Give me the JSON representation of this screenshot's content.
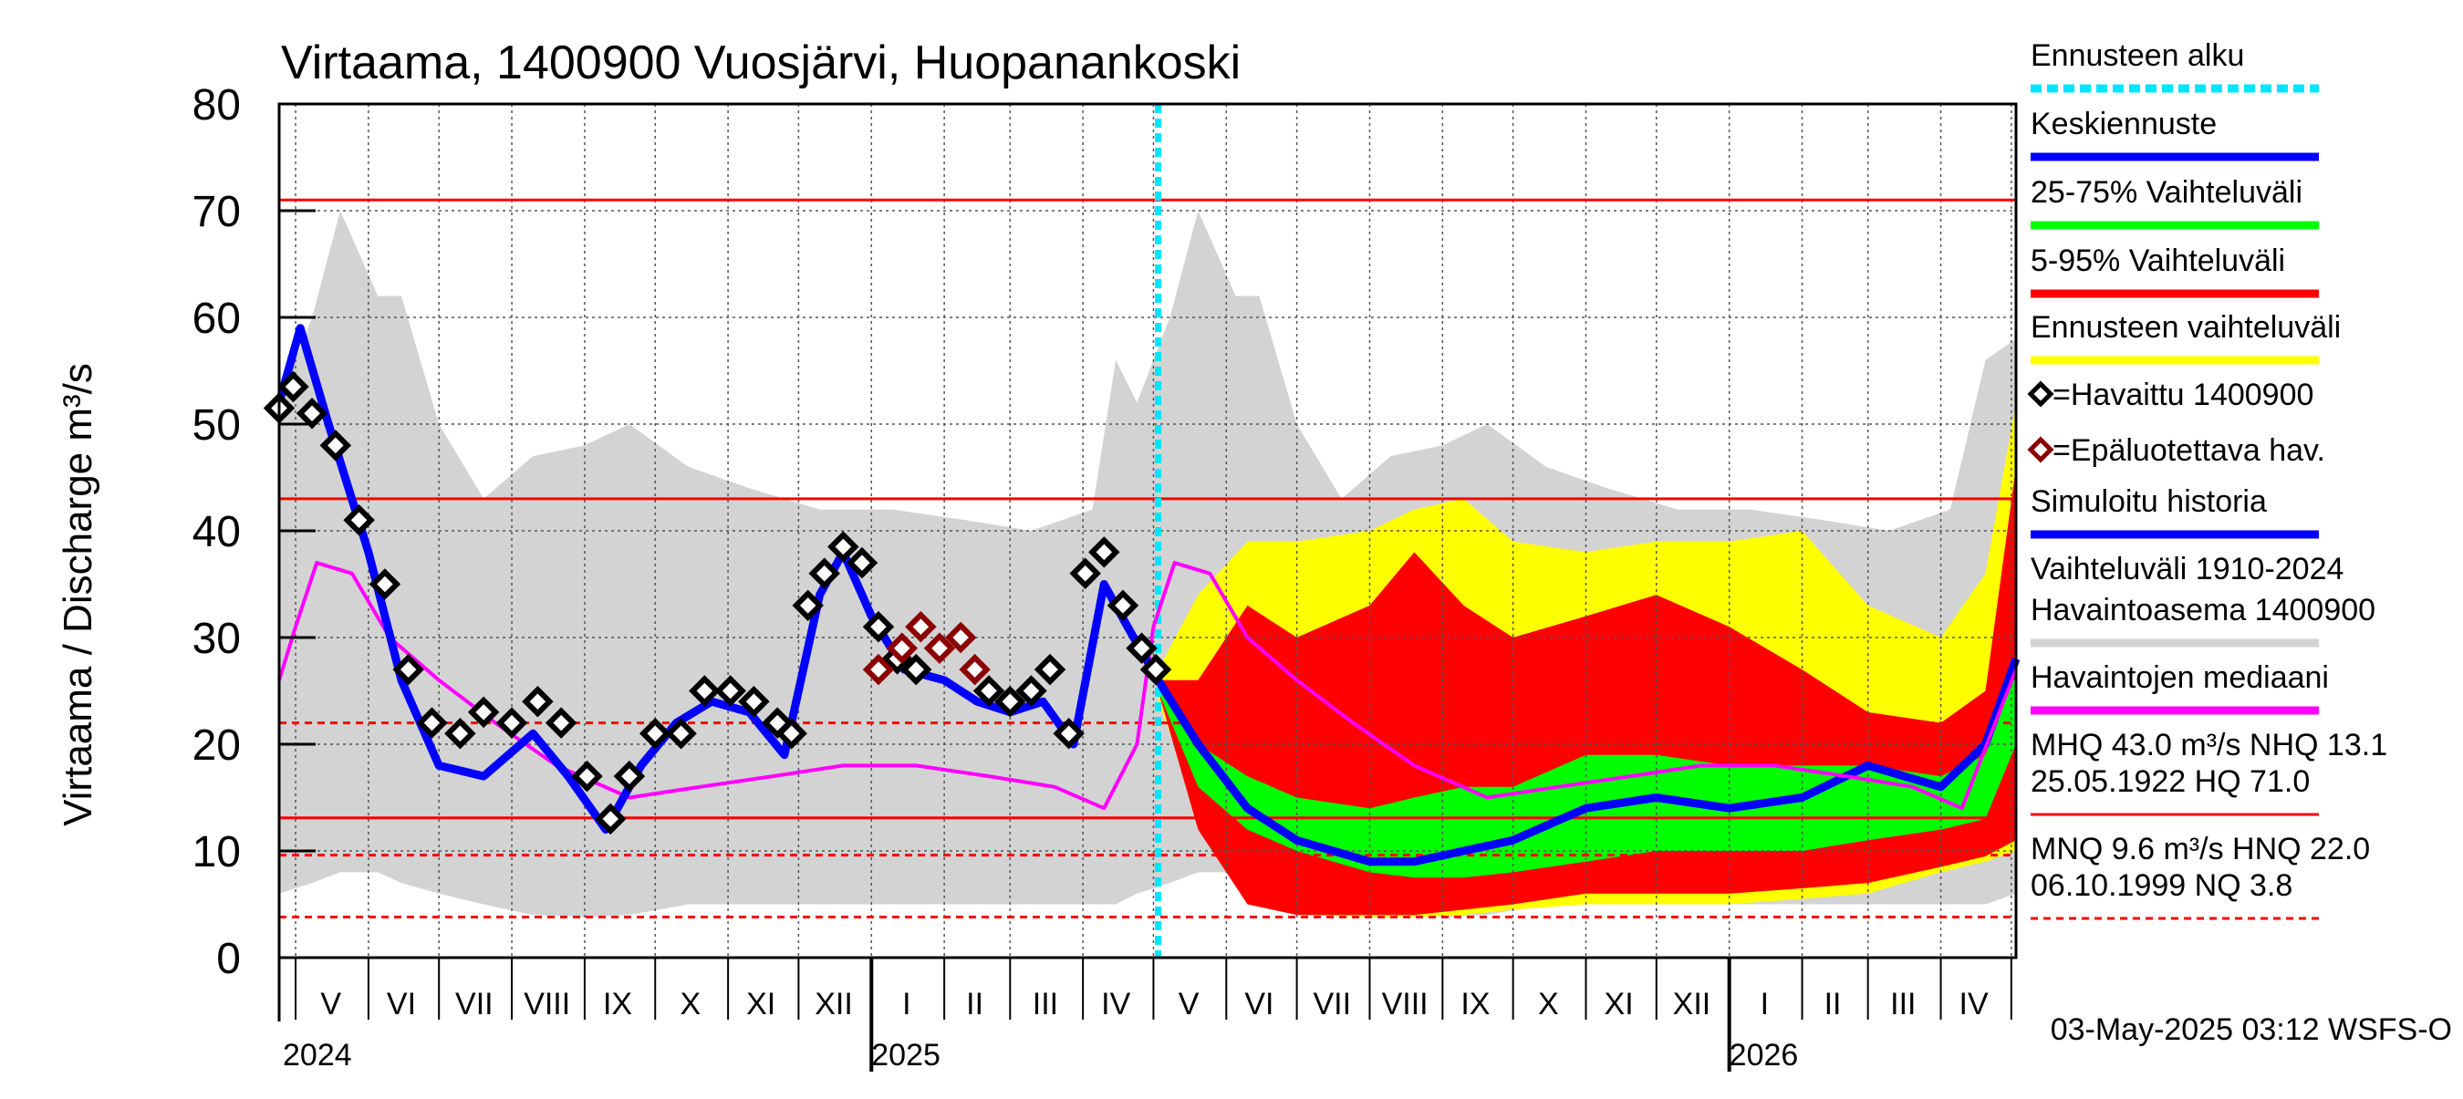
{
  "chart_data": {
    "type": "area",
    "title": "Virtaama, 1400900 Vuosjärvi, Huopanankoski",
    "ylabel": "Virtaama / Discharge   m³/s",
    "ylim": [
      0,
      80
    ],
    "y_ticks": [
      0,
      10,
      20,
      30,
      40,
      50,
      60,
      70,
      80
    ],
    "x_range": [
      "2024-04-24",
      "2026-05-03"
    ],
    "forecast_start": "2025-05-03",
    "grid": true,
    "legend_position": "right",
    "month_labels": [
      {
        "label": "V",
        "date": "2024-05-16"
      },
      {
        "label": "VI",
        "date": "2024-06-15"
      },
      {
        "label": "VII",
        "date": "2024-07-16"
      },
      {
        "label": "VIII",
        "date": "2024-08-16"
      },
      {
        "label": "IX",
        "date": "2024-09-15"
      },
      {
        "label": "X",
        "date": "2024-10-16"
      },
      {
        "label": "XI",
        "date": "2024-11-15"
      },
      {
        "label": "XII",
        "date": "2024-12-16"
      },
      {
        "label": "I",
        "date": "2025-01-16"
      },
      {
        "label": "II",
        "date": "2025-02-14"
      },
      {
        "label": "III",
        "date": "2025-03-16"
      },
      {
        "label": "IV",
        "date": "2025-04-15"
      },
      {
        "label": "V",
        "date": "2025-05-16"
      },
      {
        "label": "VI",
        "date": "2025-06-15"
      },
      {
        "label": "VII",
        "date": "2025-07-16"
      },
      {
        "label": "VIII",
        "date": "2025-08-16"
      },
      {
        "label": "IX",
        "date": "2025-09-15"
      },
      {
        "label": "X",
        "date": "2025-10-16"
      },
      {
        "label": "XI",
        "date": "2025-11-15"
      },
      {
        "label": "XII",
        "date": "2025-12-16"
      },
      {
        "label": "I",
        "date": "2026-01-16"
      },
      {
        "label": "II",
        "date": "2026-02-14"
      },
      {
        "label": "III",
        "date": "2026-03-16"
      },
      {
        "label": "IV",
        "date": "2026-04-15"
      }
    ],
    "month_boundaries": [
      "2024-05-01",
      "2024-06-01",
      "2024-07-01",
      "2024-08-01",
      "2024-09-01",
      "2024-10-01",
      "2024-11-01",
      "2024-12-01",
      "2025-01-01",
      "2025-02-01",
      "2025-03-01",
      "2025-04-01",
      "2025-05-01",
      "2025-06-01",
      "2025-07-01",
      "2025-08-01",
      "2025-09-01",
      "2025-10-01",
      "2025-11-01",
      "2025-12-01",
      "2026-01-01",
      "2026-02-01",
      "2026-03-01",
      "2026-04-01",
      "2026-05-01"
    ],
    "year_labels": [
      {
        "label": "2024",
        "date": "2024-05-01"
      },
      {
        "label": "2025",
        "date": "2025-01-01"
      },
      {
        "label": "2026",
        "date": "2026-01-01"
      }
    ],
    "reference_lines": [
      {
        "value": 71.0,
        "style": "solid",
        "color": "#ff0000"
      },
      {
        "value": 43.0,
        "style": "solid",
        "color": "#ff0000"
      },
      {
        "value": 22.0,
        "style": "dashed",
        "color": "#ff0000"
      },
      {
        "value": 13.1,
        "style": "solid",
        "color": "#ff0000"
      },
      {
        "value": 9.6,
        "style": "dashed",
        "color": "#ff0000"
      },
      {
        "value": 3.8,
        "style": "dashed",
        "color": "#ff0000"
      }
    ],
    "series": [
      {
        "name": "Vaihteluväli 1910-2024 Havaintoasema 1400900",
        "kind": "band",
        "color": "#d3d3d3",
        "x": [
          "2024-04-24",
          "2024-05-08",
          "2024-05-20",
          "2024-06-05",
          "2024-06-15",
          "2024-07-01",
          "2024-07-20",
          "2024-08-10",
          "2024-09-01",
          "2024-09-20",
          "2024-10-15",
          "2024-11-10",
          "2024-12-10",
          "2025-01-10",
          "2025-02-10",
          "2025-03-10",
          "2025-04-05",
          "2025-04-15",
          "2025-04-24",
          "2025-05-08",
          "2025-05-20",
          "2025-06-05",
          "2025-06-15",
          "2025-07-01",
          "2025-07-20",
          "2025-08-10",
          "2025-09-01",
          "2025-09-20",
          "2025-10-15",
          "2025-11-10",
          "2025-12-10",
          "2026-01-10",
          "2026-02-10",
          "2026-03-10",
          "2026-04-05",
          "2026-04-20",
          "2026-05-03"
        ],
        "upper": [
          52,
          60,
          70,
          62,
          62,
          50,
          43,
          47,
          48,
          50,
          46,
          44,
          42,
          42,
          41,
          40,
          42,
          56,
          52,
          60,
          70,
          62,
          62,
          50,
          43,
          47,
          48,
          50,
          46,
          44,
          42,
          42,
          41,
          40,
          42,
          56,
          58
        ],
        "lower": [
          6,
          7,
          8,
          8,
          7,
          6,
          5,
          4,
          3.8,
          4,
          5,
          5,
          5,
          5,
          5,
          5,
          5,
          5,
          6,
          7,
          8,
          8,
          7,
          6,
          5,
          4,
          3.8,
          4,
          5,
          5,
          5,
          5,
          5,
          5,
          5,
          5,
          6
        ]
      },
      {
        "name": "Ennusteen vaihteluväli",
        "kind": "band",
        "color": "#ffff00",
        "x": [
          "2025-05-03",
          "2025-05-20",
          "2025-06-10",
          "2025-07-01",
          "2025-08-01",
          "2025-08-20",
          "2025-09-10",
          "2025-10-01",
          "2025-11-01",
          "2025-12-01",
          "2026-01-01",
          "2026-02-01",
          "2026-03-01",
          "2026-04-01",
          "2026-04-20",
          "2026-05-03"
        ],
        "upper": [
          27,
          34,
          39,
          39,
          40,
          42,
          43,
          39,
          38,
          39,
          39,
          40,
          33,
          30,
          36,
          52
        ],
        "lower": [
          24,
          14,
          6,
          4,
          3.8,
          3.8,
          4,
          4.5,
          5,
          5,
          5,
          5.5,
          6,
          8,
          9,
          10
        ]
      },
      {
        "name": "5-95% Vaihteluväli",
        "kind": "band",
        "color": "#ff0000",
        "x": [
          "2025-05-03",
          "2025-05-20",
          "2025-06-10",
          "2025-07-01",
          "2025-08-01",
          "2025-08-20",
          "2025-09-10",
          "2025-10-01",
          "2025-11-01",
          "2025-12-01",
          "2026-01-01",
          "2026-02-01",
          "2026-03-01",
          "2026-04-01",
          "2026-04-20",
          "2026-05-03"
        ],
        "upper": [
          26,
          26,
          33,
          30,
          33,
          38,
          33,
          30,
          32,
          34,
          31,
          27,
          23,
          22,
          25,
          46
        ],
        "lower": [
          25,
          12,
          5,
          4,
          4,
          4,
          4.5,
          5,
          6,
          6,
          6,
          6.5,
          7,
          8.5,
          9.5,
          11
        ]
      },
      {
        "name": "25-75% Vaihteluväli",
        "kind": "band",
        "color": "#00ff00",
        "x": [
          "2025-05-03",
          "2025-05-20",
          "2025-06-10",
          "2025-07-01",
          "2025-08-01",
          "2025-08-20",
          "2025-09-10",
          "2025-10-01",
          "2025-11-01",
          "2025-12-01",
          "2026-01-01",
          "2026-02-01",
          "2026-03-01",
          "2026-04-01",
          "2026-04-20",
          "2026-05-03"
        ],
        "upper": [
          25.5,
          20,
          17,
          15,
          14,
          15,
          16,
          16,
          19,
          19,
          18,
          18,
          18,
          17,
          19,
          27
        ],
        "lower": [
          25,
          16,
          12,
          10,
          8,
          7.5,
          7.5,
          8,
          9,
          10,
          10,
          10,
          11,
          12,
          13,
          20
        ]
      },
      {
        "name": "Keskiennuste",
        "kind": "line",
        "color": "#0000ff",
        "x": [
          "2025-05-03",
          "2025-05-20",
          "2025-06-10",
          "2025-07-01",
          "2025-08-01",
          "2025-08-20",
          "2025-09-10",
          "2025-10-01",
          "2025-11-01",
          "2025-12-01",
          "2026-01-01",
          "2026-02-01",
          "2026-03-01",
          "2026-04-01",
          "2026-04-20",
          "2026-05-03"
        ],
        "y": [
          26,
          20,
          14,
          11,
          9,
          9,
          10,
          11,
          14,
          15,
          14,
          15,
          18,
          16,
          20,
          28
        ]
      },
      {
        "name": "Havaintojen mediaani",
        "kind": "line",
        "color": "#ff00ff",
        "x": [
          "2024-04-24",
          "2024-05-01",
          "2024-05-10",
          "2024-05-25",
          "2024-06-10",
          "2024-07-01",
          "2024-07-25",
          "2024-08-20",
          "2024-09-20",
          "2024-10-20",
          "2024-11-20",
          "2024-12-20",
          "2025-01-20",
          "2025-02-20",
          "2025-03-20",
          "2025-04-10",
          "2025-04-24",
          "2025-05-01",
          "2025-05-10",
          "2025-05-25",
          "2025-06-10",
          "2025-07-01",
          "2025-07-25",
          "2025-08-20",
          "2025-09-20",
          "2025-10-20",
          "2025-11-20",
          "2025-12-20",
          "2026-01-20",
          "2026-02-20",
          "2026-03-20",
          "2026-04-10",
          "2026-05-03"
        ],
        "y": [
          26,
          31,
          37,
          36,
          30,
          26,
          22,
          18,
          15,
          16,
          17,
          18,
          18,
          17,
          16,
          14,
          20,
          31,
          37,
          36,
          30,
          26,
          22,
          18,
          15,
          16,
          17,
          18,
          18,
          17,
          16,
          14,
          27
        ]
      },
      {
        "name": "Simuloitu historia",
        "kind": "line",
        "color": "#0000ff",
        "x": [
          "2024-04-24",
          "2024-05-03",
          "2024-05-15",
          "2024-06-01",
          "2024-06-15",
          "2024-07-01",
          "2024-07-20",
          "2024-08-10",
          "2024-08-25",
          "2024-09-10",
          "2024-09-25",
          "2024-10-10",
          "2024-10-25",
          "2024-11-10",
          "2024-11-25",
          "2024-12-10",
          "2024-12-20",
          "2025-01-01",
          "2025-01-15",
          "2025-02-01",
          "2025-02-15",
          "2025-03-01",
          "2025-03-15",
          "2025-03-28",
          "2025-04-10",
          "2025-04-20",
          "2025-05-03"
        ],
        "y": [
          52,
          59,
          50,
          38,
          26,
          18,
          17,
          21,
          17,
          12,
          18,
          22,
          24,
          23,
          19,
          34,
          38,
          32,
          27,
          26,
          24,
          23,
          24,
          20,
          35,
          31,
          26
        ]
      },
      {
        "name": "Havaittu 1400900",
        "kind": "markers",
        "color": "#000000",
        "x": [
          "2024-04-24",
          "2024-04-30",
          "2024-05-08",
          "2024-05-18",
          "2024-05-28",
          "2024-06-08",
          "2024-06-18",
          "2024-06-28",
          "2024-07-10",
          "2024-07-20",
          "2024-08-01",
          "2024-08-12",
          "2024-08-22",
          "2024-09-02",
          "2024-09-12",
          "2024-09-20",
          "2024-10-01",
          "2024-10-12",
          "2024-10-22",
          "2024-11-02",
          "2024-11-12",
          "2024-11-22",
          "2024-11-28",
          "2024-12-05",
          "2024-12-12",
          "2024-12-20",
          "2024-12-28",
          "2025-01-04",
          "2025-01-12",
          "2025-01-20",
          "2025-02-20",
          "2025-03-01",
          "2025-03-10",
          "2025-03-18",
          "2025-03-26",
          "2025-04-02",
          "2025-04-10",
          "2025-04-18",
          "2025-04-26",
          "2025-05-02"
        ],
        "y": [
          51.5,
          53.5,
          51,
          48,
          41,
          35,
          27,
          22,
          21,
          23,
          22,
          24,
          22,
          17,
          13,
          17,
          21,
          21,
          25,
          25,
          24,
          22,
          21,
          33,
          36,
          38.5,
          37,
          31,
          28,
          27,
          25,
          24,
          25,
          27,
          21,
          36,
          38,
          33,
          29,
          27
        ]
      },
      {
        "name": "Epäluotettava hav.",
        "kind": "markers",
        "color": "#8b0000",
        "x": [
          "2025-01-04",
          "2025-01-14",
          "2025-01-22",
          "2025-01-30",
          "2025-02-08",
          "2025-02-14"
        ],
        "y": [
          27,
          29,
          31,
          29,
          30,
          27
        ]
      }
    ],
    "legend": [
      {
        "label": "Ennusteen alku",
        "kind": "dashed-line",
        "color": "#00e5ff"
      },
      {
        "label": "Keskiennuste",
        "kind": "line",
        "color": "#0000ff"
      },
      {
        "label": "25-75% Vaihteluväli",
        "kind": "line",
        "color": "#00ff00"
      },
      {
        "label": "5-95% Vaihteluväli",
        "kind": "line",
        "color": "#ff0000"
      },
      {
        "label": "Ennusteen vaihteluväli",
        "kind": "line",
        "color": "#ffff00"
      },
      {
        "label": "=Havaittu 1400900",
        "kind": "marker",
        "color": "#000000"
      },
      {
        "label": "=Epäluotettava hav.",
        "kind": "marker",
        "color": "#8b0000"
      },
      {
        "label": "Simuloitu historia",
        "kind": "line",
        "color": "#0000ff"
      },
      {
        "label": "Vaihteluväli 1910-2024",
        "kind": "text"
      },
      {
        "label": " Havaintoasema 1400900",
        "kind": "line",
        "color": "#d3d3d3"
      },
      {
        "label": "Havaintojen mediaani",
        "kind": "line",
        "color": "#ff00ff"
      },
      {
        "label": "MHQ 43.0 m³/s NHQ 13.1",
        "kind": "text"
      },
      {
        "label": "25.05.1922 HQ 71.0",
        "kind": "line",
        "color": "#ff0000"
      },
      {
        "label": "MNQ  9.6 m³/s HNQ 22.0",
        "kind": "text"
      },
      {
        "label": "06.10.1999 NQ  3.8",
        "kind": "dashed-line",
        "color": "#ff0000"
      }
    ],
    "footer": "03-May-2025 03:12 WSFS-O"
  }
}
